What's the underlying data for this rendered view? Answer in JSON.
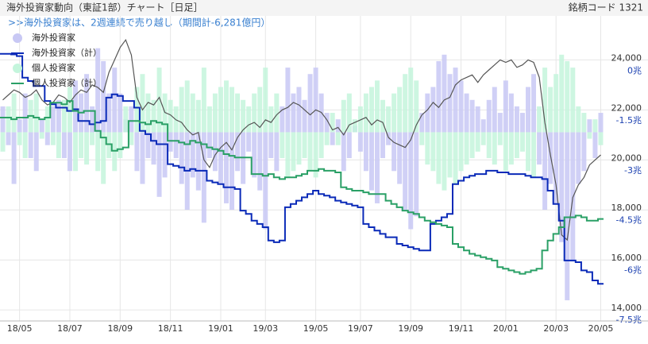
{
  "chart_data": {
    "type": "bar",
    "title": "海外投資家動向（東証1部）チャート［日足］",
    "code_label": "銘柄コード 1321",
    "subtitle": ">>海外投資家は、2週連続で売り越し（期間計-6,281億円）",
    "grid": true,
    "legend": "top-left",
    "categories": [
      null,
      null,
      null,
      "18/05",
      null,
      null,
      null,
      null,
      null,
      null,
      null,
      null,
      "18/07",
      null,
      null,
      null,
      null,
      null,
      null,
      null,
      null,
      "18/09",
      null,
      null,
      null,
      null,
      null,
      null,
      null,
      null,
      "18/11",
      null,
      null,
      null,
      null,
      null,
      null,
      null,
      null,
      "19/01",
      null,
      null,
      null,
      null,
      null,
      null,
      null,
      "19/03",
      null,
      null,
      null,
      null,
      null,
      null,
      null,
      null,
      "19/05",
      null,
      null,
      null,
      null,
      null,
      null,
      null,
      "19/07",
      null,
      null,
      null,
      null,
      null,
      null,
      null,
      null,
      "19/09",
      null,
      null,
      null,
      null,
      null,
      null,
      null,
      null,
      "19/11",
      null,
      null,
      null,
      null,
      null,
      null,
      null,
      "20/01",
      null,
      null,
      null,
      null,
      null,
      null,
      null,
      null,
      "20/03",
      null,
      null,
      null,
      null,
      null,
      null,
      null,
      "20/05"
    ],
    "ylim": [
      13560,
      25760
    ],
    "yticks": [
      {
        "value": 24000,
        "label": "24,000"
      },
      {
        "value": 22000,
        "label": "22,000"
      },
      {
        "value": 20000,
        "label": "20,000"
      },
      {
        "value": 18000,
        "label": "18,000"
      },
      {
        "value": 16000,
        "label": "16,000"
      },
      {
        "value": 14000,
        "label": "14,000"
      }
    ],
    "y2lim": [
      -7.52,
      1.66
    ],
    "y2ticks": [
      {
        "value": 0,
        "label": "0兆"
      },
      {
        "value": -1.5,
        "label": "-1.5兆"
      },
      {
        "value": -3,
        "label": "-3兆"
      },
      {
        "value": -4.5,
        "label": "-4.5兆"
      },
      {
        "value": -6,
        "label": "-6兆"
      },
      {
        "value": -7.5,
        "label": "-7.5兆"
      }
    ],
    "y3lim": [
      -1.46,
      0.9
    ],
    "series": [
      {
        "name": "海外投資家",
        "kind": "bar",
        "axis": "y3",
        "color": "#c8c8f4",
        "values": [
          0.2,
          -0.1,
          -0.4,
          0.1,
          0.3,
          -0.2,
          -0.3,
          0.1,
          -0.1,
          0.2,
          0.25,
          -0.2,
          -0.3,
          0.4,
          0.3,
          0.45,
          0.2,
          0.65,
          0.55,
          0.3,
          0.5,
          0.3,
          0.1,
          0.2,
          -0.3,
          -0.4,
          -0.2,
          -0.25,
          -0.5,
          -0.35,
          -0.15,
          -0.2,
          -0.4,
          -0.6,
          -0.35,
          -0.45,
          -0.7,
          -0.2,
          -0.3,
          -0.4,
          -0.55,
          -0.6,
          -0.3,
          -0.4,
          -0.15,
          -0.35,
          -0.45,
          -0.75,
          -0.2,
          -0.3,
          0.2,
          0.5,
          0.3,
          0.35,
          0.25,
          0.45,
          0.5,
          0.3,
          0.15,
          -0.1,
          0.1,
          -0.3,
          -0.2,
          0.05,
          -0.15,
          -0.3,
          -0.45,
          -0.55,
          -0.2,
          -0.1,
          -0.3,
          -0.4,
          -0.6,
          -0.75,
          -0.65,
          0.15,
          0.3,
          0.35,
          0.55,
          0.6,
          0.45,
          0.5,
          0.4,
          0.3,
          0.25,
          0.2,
          0.1,
          0.25,
          0.35,
          0.15,
          0.4,
          0.3,
          0.2,
          0.15,
          0.35,
          0.45,
          -0.25,
          -0.6,
          -0.4,
          -0.55,
          -0.85,
          -1.3,
          -1.0,
          -0.4,
          -0.3,
          0.1,
          -0.2,
          0.15
        ]
      },
      {
        "name": "海外投資家（計）",
        "kind": "line",
        "axis": "y2",
        "color": "#0a2ab8",
        "values": [
          0.52,
          0.52,
          0.5,
          0.45,
          -0.2,
          -0.3,
          -0.45,
          -0.45,
          -0.9,
          -1.0,
          -1.1,
          -1.1,
          -1.2,
          -1.15,
          -1.5,
          -1.5,
          -1.6,
          -1.55,
          -1.5,
          -0.8,
          -0.7,
          -0.75,
          -0.9,
          -0.9,
          -1.1,
          -1.8,
          -1.9,
          -2.1,
          -2.2,
          -2.2,
          -2.8,
          -2.85,
          -2.9,
          -3.0,
          -2.95,
          -3.0,
          -3.0,
          -3.3,
          -3.35,
          -3.4,
          -3.5,
          -3.5,
          -3.55,
          -4.2,
          -4.3,
          -4.5,
          -4.6,
          -4.7,
          -5.1,
          -5.15,
          -5.1,
          -4.1,
          -4.0,
          -3.9,
          -3.8,
          -3.7,
          -3.6,
          -3.7,
          -3.75,
          -3.8,
          -3.9,
          -3.95,
          -4.0,
          -4.05,
          -4.1,
          -4.6,
          -4.7,
          -4.8,
          -4.9,
          -5.0,
          -5.0,
          -5.2,
          -5.25,
          -5.3,
          -5.35,
          -5.4,
          -5.4,
          -4.6,
          -4.5,
          -4.4,
          -4.3,
          -3.4,
          -3.3,
          -3.2,
          -3.15,
          -3.1,
          -3.1,
          -3.0,
          -3.0,
          -3.05,
          -3.05,
          -3.1,
          -3.1,
          -3.1,
          -3.15,
          -3.2,
          -3.2,
          -3.25,
          -3.6,
          -4.0,
          -4.5,
          -5.7,
          -5.7,
          -5.75,
          -6.0,
          -6.05,
          -6.3,
          -6.4
        ]
      },
      {
        "name": "個人投資家",
        "kind": "bar",
        "axis": "y3",
        "color": "#c4f5dc",
        "values": [
          -0.15,
          0.2,
          0.3,
          -0.1,
          -0.2,
          0.25,
          0.3,
          -0.05,
          0.2,
          -0.1,
          -0.2,
          0.25,
          0.35,
          -0.3,
          -0.2,
          -0.25,
          -0.1,
          -0.3,
          -0.4,
          -0.2,
          -0.3,
          -0.2,
          0.2,
          -0.1,
          0.35,
          0.45,
          0.3,
          0.25,
          0.5,
          0.3,
          0.25,
          0.2,
          0.35,
          0.4,
          0.3,
          0.25,
          0.5,
          0.2,
          0.3,
          0.35,
          0.4,
          0.35,
          0.3,
          0.25,
          0.2,
          0.3,
          0.35,
          0.5,
          0.2,
          0.3,
          -0.2,
          -0.35,
          -0.3,
          -0.25,
          -0.2,
          -0.3,
          -0.35,
          -0.2,
          -0.1,
          0.15,
          -0.1,
          0.25,
          0.3,
          0.1,
          0.2,
          0.3,
          0.35,
          0.4,
          0.25,
          0.2,
          0.3,
          0.35,
          0.45,
          0.5,
          0.4,
          -0.1,
          -0.25,
          -0.3,
          -0.4,
          -0.45,
          -0.35,
          -0.4,
          -0.3,
          -0.25,
          -0.2,
          -0.15,
          -0.1,
          -0.2,
          -0.25,
          -0.1,
          -0.3,
          -0.25,
          -0.2,
          -0.15,
          -0.3,
          -0.35,
          0.2,
          0.5,
          0.35,
          0.45,
          0.6,
          0.55,
          0.5,
          0.2,
          0.15,
          -0.05,
          0.1,
          -0.1
        ]
      },
      {
        "name": "個人投資家（計）",
        "kind": "line",
        "axis": "y2",
        "color": "#2aa066",
        "values": [
          -1.4,
          -1.4,
          -1.45,
          -1.4,
          -1.4,
          -1.35,
          -1.4,
          -1.45,
          -1.4,
          -0.95,
          -0.95,
          -1.0,
          -0.9,
          -1.2,
          -1.25,
          -1.2,
          -1.2,
          -1.8,
          -2.0,
          -2.2,
          -2.4,
          -2.35,
          -2.3,
          -1.5,
          -1.5,
          -1.55,
          -1.6,
          -1.5,
          -1.55,
          -1.6,
          -2.1,
          -2.1,
          -2.15,
          -2.2,
          -2.1,
          -2.15,
          -2.2,
          -2.3,
          -2.35,
          -2.4,
          -2.5,
          -2.55,
          -2.6,
          -2.6,
          -2.6,
          -3.1,
          -3.1,
          -3.15,
          -3.1,
          -3.2,
          -3.25,
          -3.2,
          -3.2,
          -3.15,
          -3.1,
          -3.0,
          -3.0,
          -2.95,
          -3.0,
          -3.0,
          -3.05,
          -3.5,
          -3.55,
          -3.6,
          -3.6,
          -3.65,
          -3.7,
          -3.7,
          -3.7,
          -3.9,
          -4.0,
          -4.1,
          -4.2,
          -4.25,
          -4.3,
          -4.4,
          -4.5,
          -4.55,
          -4.6,
          -4.65,
          -4.7,
          -5.2,
          -5.3,
          -5.4,
          -5.5,
          -5.55,
          -5.6,
          -5.65,
          -5.7,
          -5.9,
          -5.95,
          -6.0,
          -6.05,
          -6.1,
          -6.05,
          -6.0,
          -5.95,
          -5.4,
          -5.1,
          -4.9,
          -4.7,
          -4.4,
          -4.4,
          -4.35,
          -4.4,
          -4.5,
          -4.5,
          -4.45
        ]
      },
      {
        "kind": "line",
        "axis": "y",
        "color": "#555555",
        "values": [
          22400,
          22600,
          22800,
          22700,
          22500,
          22600,
          22800,
          22400,
          22200,
          22300,
          22600,
          22500,
          22300,
          22600,
          22800,
          22700,
          23000,
          22900,
          22700,
          23500,
          24000,
          24500,
          24800,
          24200,
          22500,
          22000,
          22300,
          22200,
          22500,
          21900,
          21800,
          21600,
          21500,
          21200,
          21000,
          21100,
          20000,
          19700,
          20200,
          20500,
          20700,
          20400,
          20900,
          21200,
          21400,
          21500,
          21300,
          21600,
          21500,
          21800,
          22000,
          22100,
          22300,
          22200,
          22000,
          21800,
          22000,
          21900,
          21600,
          21200,
          21300,
          21000,
          21400,
          21500,
          21600,
          21700,
          21400,
          21600,
          21500,
          20900,
          20700,
          20600,
          20500,
          20800,
          21400,
          21800,
          22000,
          22300,
          22100,
          22400,
          22500,
          23000,
          23200,
          23300,
          23400,
          23100,
          23400,
          23600,
          23800,
          24000,
          23900,
          24000,
          23700,
          23800,
          24000,
          23900,
          23300,
          21500,
          20200,
          19000,
          17000,
          16800,
          18500,
          19000,
          19300,
          19800,
          20000,
          20200
        ]
      }
    ]
  }
}
